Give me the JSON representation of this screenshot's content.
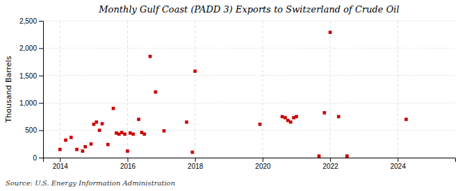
{
  "chart_data": {
    "type": "scatter",
    "title": "Monthly Gulf Coast (PADD 3) Exports to Switzerland of Crude Oil",
    "ylabel": "Thousand Barrels",
    "source": "Source: U.S. Energy Information Administration",
    "color": "#cc0000",
    "marker": "square",
    "grid": true,
    "xlim": [
      2013.5,
      2025.7
    ],
    "ylim": [
      0,
      2500
    ],
    "xticks": [
      2014,
      2016,
      2018,
      2020,
      2022,
      2024
    ],
    "yticks": [
      0,
      500,
      {
        "value": 1000,
        "label": "1,000"
      },
      {
        "value": 1500,
        "label": "1,500"
      },
      {
        "value": 2000,
        "label": "2,000"
      },
      {
        "value": 2500,
        "label": "2,500"
      }
    ],
    "x": [
      2014.0,
      2014.17,
      2014.33,
      2014.5,
      2014.67,
      2014.75,
      2014.92,
      2015.0,
      2015.08,
      2015.17,
      2015.25,
      2015.42,
      2015.58,
      2015.67,
      2015.75,
      2015.83,
      2015.92,
      2016.0,
      2016.08,
      2016.17,
      2016.33,
      2016.42,
      2016.5,
      2016.67,
      2016.83,
      2017.08,
      2017.75,
      2017.92,
      2018.0,
      2019.92,
      2020.58,
      2020.67,
      2020.75,
      2020.83,
      2020.92,
      2021.0,
      2021.67,
      2021.83,
      2022.0,
      2022.25,
      2022.5,
      2024.25
    ],
    "values": [
      150,
      320,
      370,
      150,
      120,
      200,
      250,
      610,
      650,
      500,
      620,
      240,
      900,
      450,
      430,
      460,
      430,
      120,
      450,
      430,
      700,
      460,
      430,
      1850,
      1200,
      490,
      650,
      100,
      1580,
      610,
      750,
      730,
      680,
      650,
      730,
      750,
      30,
      820,
      2290,
      750,
      30,
      700
    ]
  }
}
